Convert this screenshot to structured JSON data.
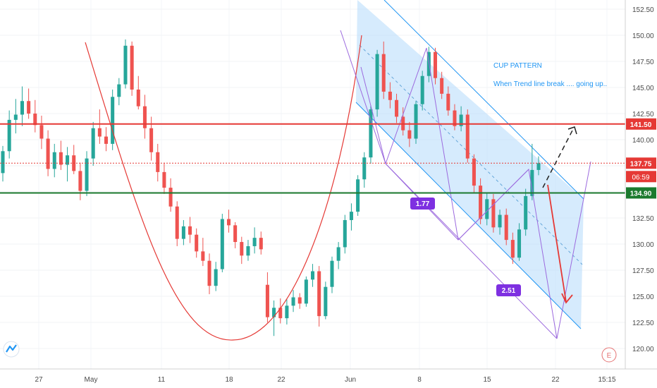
{
  "chart_data": {
    "type": "candlestick",
    "y_ticks": [
      "152.50",
      "150.00",
      "147.50",
      "145.00",
      "142.50",
      "140.00",
      "137.50",
      "135.00",
      "132.50",
      "130.00",
      "127.50",
      "125.00",
      "122.50",
      "120.00"
    ],
    "y_tick_values": [
      152.5,
      150,
      147.5,
      145,
      142.5,
      140,
      137.5,
      135,
      132.5,
      130,
      127.5,
      125,
      122.5,
      120
    ],
    "x_ticks": [
      "27",
      "May",
      "11",
      "18",
      "22",
      "Jun",
      "8",
      "15",
      "22",
      "15:15"
    ],
    "ylim": [
      118.8,
      153.2
    ],
    "levels": [
      {
        "label": "141.50",
        "value": 141.5,
        "color": "#e53935",
        "style": "solid"
      },
      {
        "label": "134.90",
        "value": 134.9,
        "color": "#1b7a2e",
        "style": "solid"
      },
      {
        "label": "137.75",
        "value": 137.75,
        "color": "#e53935",
        "style": "dotted"
      }
    ],
    "countdown_label": "06:59",
    "annotations": {
      "title": "CUP PATTERN",
      "subtitle": "When Trend line break .... going up..",
      "ratio_1": "1.77",
      "ratio_2": "2.51",
      "earnings_marker": "E"
    },
    "colors": {
      "up": "#26a69a",
      "down": "#ef5350",
      "channel": "#2196f3",
      "pattern": "#9c6ade",
      "ratio_tag": "#8e2de2"
    },
    "candles": [
      [
        136.8,
        139.4,
        136.0,
        138.9
      ],
      [
        138.9,
        142.8,
        138.2,
        141.9
      ],
      [
        141.9,
        143.9,
        140.6,
        142.4
      ],
      [
        142.4,
        145.1,
        141.3,
        143.7
      ],
      [
        143.7,
        144.9,
        142.0,
        142.5
      ],
      [
        142.5,
        143.8,
        140.7,
        141.4
      ],
      [
        141.4,
        142.3,
        139.1,
        140.1
      ],
      [
        140.1,
        140.9,
        136.5,
        137.2
      ],
      [
        137.2,
        139.6,
        136.4,
        138.8
      ],
      [
        138.8,
        139.9,
        137.1,
        137.6
      ],
      [
        137.6,
        139.3,
        136.0,
        138.5
      ],
      [
        138.5,
        139.5,
        136.7,
        137.0
      ],
      [
        137.0,
        137.8,
        134.2,
        135.1
      ],
      [
        135.1,
        138.9,
        134.6,
        138.2
      ],
      [
        138.2,
        141.7,
        137.5,
        141.1
      ],
      [
        141.1,
        142.9,
        139.6,
        140.3
      ],
      [
        140.3,
        141.2,
        138.9,
        139.6
      ],
      [
        139.6,
        144.8,
        139.0,
        144.1
      ],
      [
        144.1,
        145.9,
        143.3,
        145.3
      ],
      [
        145.3,
        149.6,
        144.9,
        149.0
      ],
      [
        149.0,
        149.4,
        144.2,
        144.8
      ],
      [
        144.8,
        146.1,
        142.9,
        143.2
      ],
      [
        143.2,
        144.3,
        140.1,
        141.1
      ],
      [
        141.1,
        142.2,
        138.0,
        138.8
      ],
      [
        138.8,
        139.6,
        136.0,
        136.9
      ],
      [
        136.9,
        137.8,
        134.8,
        135.4
      ],
      [
        135.4,
        136.3,
        133.1,
        133.6
      ],
      [
        133.6,
        134.1,
        129.8,
        130.5
      ],
      [
        130.5,
        132.3,
        129.9,
        131.7
      ],
      [
        131.7,
        132.6,
        130.1,
        130.9
      ],
      [
        130.9,
        131.5,
        128.7,
        129.3
      ],
      [
        129.3,
        130.6,
        127.9,
        128.4
      ],
      [
        128.4,
        129.1,
        125.2,
        126.0
      ],
      [
        126.0,
        128.3,
        125.5,
        127.6
      ],
      [
        127.6,
        132.9,
        127.3,
        132.4
      ],
      [
        132.4,
        133.3,
        131.1,
        131.8
      ],
      [
        131.8,
        132.1,
        129.6,
        130.2
      ],
      [
        130.2,
        130.7,
        128.1,
        128.9
      ],
      [
        128.9,
        130.4,
        128.4,
        129.8
      ],
      [
        129.8,
        131.6,
        129.1,
        130.6
      ],
      [
        130.6,
        131.2,
        129.0,
        129.5
      ],
      [
        126.1,
        127.3,
        122.5,
        123.0
      ],
      [
        123.0,
        124.6,
        121.2,
        123.9
      ],
      [
        123.9,
        124.8,
        122.4,
        122.9
      ],
      [
        122.9,
        124.7,
        122.3,
        124.1
      ],
      [
        124.1,
        125.6,
        123.5,
        124.9
      ],
      [
        124.9,
        125.3,
        123.8,
        124.3
      ],
      [
        124.3,
        126.9,
        124.0,
        126.6
      ],
      [
        126.6,
        128.1,
        125.9,
        127.4
      ],
      [
        127.4,
        127.9,
        122.1,
        123.1
      ],
      [
        123.1,
        126.4,
        122.8,
        125.9
      ],
      [
        125.9,
        128.8,
        125.3,
        128.4
      ],
      [
        128.4,
        130.2,
        127.6,
        129.7
      ],
      [
        129.7,
        132.8,
        129.1,
        132.3
      ],
      [
        132.3,
        133.9,
        131.3,
        133.1
      ],
      [
        133.1,
        136.6,
        132.7,
        136.2
      ],
      [
        136.2,
        138.8,
        135.4,
        138.3
      ],
      [
        138.3,
        143.3,
        137.7,
        142.9
      ],
      [
        142.9,
        148.6,
        142.2,
        148.2
      ],
      [
        148.2,
        149.4,
        143.9,
        144.6
      ],
      [
        144.6,
        145.5,
        143.0,
        143.8
      ],
      [
        143.8,
        144.4,
        141.6,
        142.2
      ],
      [
        142.2,
        143.1,
        140.4,
        140.9
      ],
      [
        140.9,
        141.7,
        139.3,
        140.1
      ],
      [
        140.1,
        143.7,
        139.6,
        143.4
      ],
      [
        143.4,
        146.6,
        142.8,
        146.1
      ],
      [
        146.1,
        148.9,
        145.5,
        148.4
      ],
      [
        148.4,
        148.8,
        145.3,
        145.9
      ],
      [
        145.9,
        146.5,
        143.9,
        144.4
      ],
      [
        144.4,
        145.1,
        142.3,
        142.8
      ],
      [
        142.8,
        143.4,
        140.9,
        141.3
      ],
      [
        141.3,
        143.2,
        140.8,
        142.4
      ],
      [
        142.4,
        142.9,
        137.8,
        138.2
      ],
      [
        138.2,
        138.6,
        134.9,
        135.6
      ],
      [
        135.6,
        136.3,
        131.9,
        132.4
      ],
      [
        132.4,
        134.9,
        131.8,
        134.3
      ],
      [
        134.3,
        134.8,
        131.1,
        131.6
      ],
      [
        131.6,
        133.3,
        130.9,
        132.8
      ],
      [
        132.8,
        133.4,
        129.9,
        130.4
      ],
      [
        130.4,
        131.1,
        128.1,
        128.7
      ],
      [
        128.7,
        132.0,
        128.4,
        131.4
      ],
      [
        131.4,
        135.3,
        130.8,
        134.6
      ],
      [
        134.6,
        139.6,
        134.2,
        137.1
      ],
      [
        137.1,
        138.4,
        136.6,
        137.75
      ]
    ]
  }
}
